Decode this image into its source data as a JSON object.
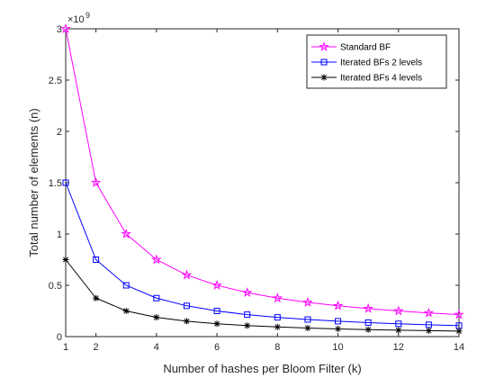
{
  "chart_data": {
    "type": "line",
    "x": [
      1,
      2,
      3,
      4,
      5,
      6,
      7,
      8,
      9,
      10,
      11,
      12,
      13,
      14
    ],
    "xlabel": "Number of hashes per Bloom Filter (k)",
    "ylabel": "Total number of elements (n)",
    "xlim": [
      1,
      14
    ],
    "ylim": [
      0,
      3000000000
    ],
    "xticks": [
      1,
      2,
      4,
      6,
      8,
      10,
      12,
      14
    ],
    "yticks": [
      0,
      0.5,
      1,
      1.5,
      2,
      2.5,
      3
    ],
    "ytick_labels": [
      "0",
      "0.5",
      "1",
      "1.5",
      "2",
      "2.5",
      "3"
    ],
    "y_exponent": "×10",
    "y_exponent_power": "9",
    "legend_position": "top-right",
    "grid": false,
    "series": [
      {
        "name": "Standard BF",
        "color": "#ff00ff",
        "marker": "pentagram",
        "values": [
          3000000000,
          1500000000,
          1000000000,
          750000000,
          600000000,
          500000000,
          428571429,
          375000000,
          333333333,
          300000000,
          272727273,
          250000000,
          230769231,
          214285714
        ]
      },
      {
        "name": "Iterated BFs 2 levels",
        "color": "#0000ff",
        "marker": "square",
        "values": [
          1500000000,
          750000000,
          500000000,
          375000000,
          300000000,
          250000000,
          214285714,
          187500000,
          166666667,
          150000000,
          136363636,
          125000000,
          115384615,
          107142857
        ]
      },
      {
        "name": "Iterated BFs 4 levels",
        "color": "#000000",
        "marker": "asterisk",
        "values": [
          750000000,
          375000000,
          250000000,
          187500000,
          150000000,
          125000000,
          107142857,
          93750000,
          83333333,
          75000000,
          68181818,
          62500000,
          57692308,
          53571429
        ]
      }
    ]
  }
}
